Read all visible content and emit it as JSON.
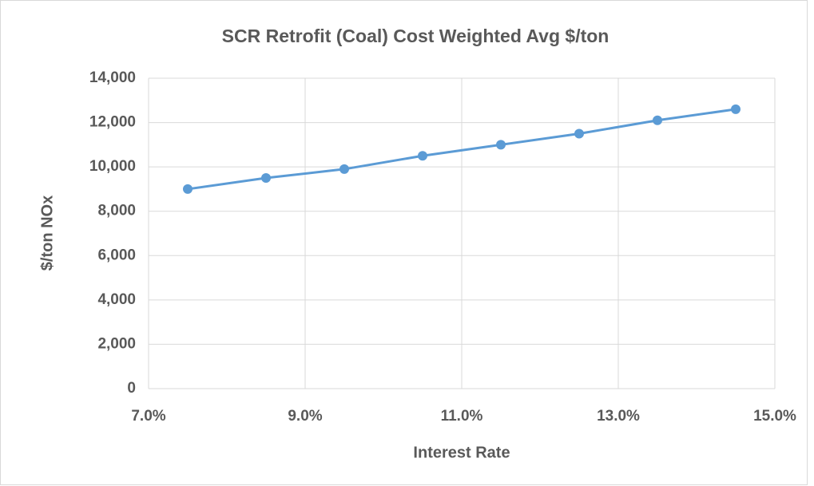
{
  "chart_data": {
    "type": "line",
    "title": "SCR Retrofit (Coal) Cost Weighted Avg $/ton",
    "x_label": "Interest Rate",
    "y_label": "$/ton NOx",
    "x": [
      7.5,
      8.5,
      9.5,
      10.5,
      11.5,
      12.5,
      13.5,
      14.5
    ],
    "series": [
      {
        "name": "SCR Retrofit (Coal) Cost Weighted Avg $/ton",
        "color": "#5b9bd5",
        "values": [
          9000,
          9500,
          9900,
          10500,
          11000,
          11500,
          12100,
          12600
        ]
      }
    ],
    "xlim": [
      7,
      15
    ],
    "xticks": [
      {
        "value": 7,
        "label": "7.0%"
      },
      {
        "value": 9,
        "label": "9.0%"
      },
      {
        "value": 11,
        "label": "11.0%"
      },
      {
        "value": 13,
        "label": "13.0%"
      },
      {
        "value": 15,
        "label": "15.0%"
      }
    ],
    "ylim": [
      0,
      14000
    ],
    "yticks": [
      0,
      {
        "value": 2000,
        "label": "2,000"
      },
      {
        "value": 4000,
        "label": "4,000"
      },
      {
        "value": 6000,
        "label": "6,000"
      },
      {
        "value": 8000,
        "label": "8,000"
      },
      {
        "value": 10000,
        "label": "10,000"
      },
      {
        "value": 12000,
        "label": "12,000"
      },
      {
        "value": 14000,
        "label": "14,000"
      }
    ],
    "grid": true
  }
}
